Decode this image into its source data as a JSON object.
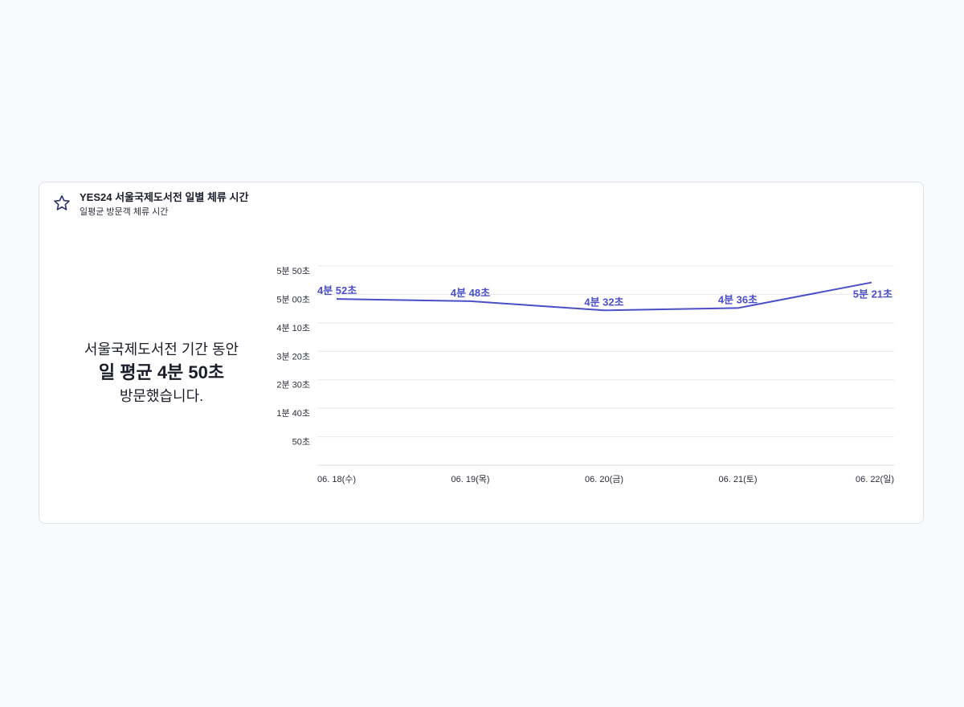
{
  "card": {
    "title": "YES24 서울국제도서전 일별 체류 시간",
    "subtitle": "일평균 방문객 체류 시간",
    "icon": "star-icon"
  },
  "summary": {
    "line1": "서울국제도서전 기간 동안",
    "line2": "일 평균 4분 50초",
    "line3": "방문했습니다."
  },
  "colors": {
    "line": "#4a4fc8",
    "grid": "#e6e8ee",
    "text": "#1b1d2a"
  },
  "chart_data": {
    "type": "line",
    "unit": "seconds",
    "categories": [
      "06. 18(수)",
      "06. 19(목)",
      "06. 20(금)",
      "06. 21(토)",
      "06. 22(일)"
    ],
    "values": [
      292,
      288,
      272,
      276,
      321
    ],
    "data_labels": [
      "4분 52초",
      "4분 48초",
      "4분 32초",
      "4분 36초",
      "5분 21초"
    ],
    "y_ticks": [
      {
        "value": 350,
        "label": "5분 50초"
      },
      {
        "value": 300,
        "label": "5분 00초"
      },
      {
        "value": 250,
        "label": "4분 10초"
      },
      {
        "value": 200,
        "label": "3분 20초"
      },
      {
        "value": 150,
        "label": "2분 30초"
      },
      {
        "value": 100,
        "label": "1분 40초"
      },
      {
        "value": 50,
        "label": "50초"
      }
    ],
    "ylim": [
      0,
      350
    ],
    "grid": true
  }
}
